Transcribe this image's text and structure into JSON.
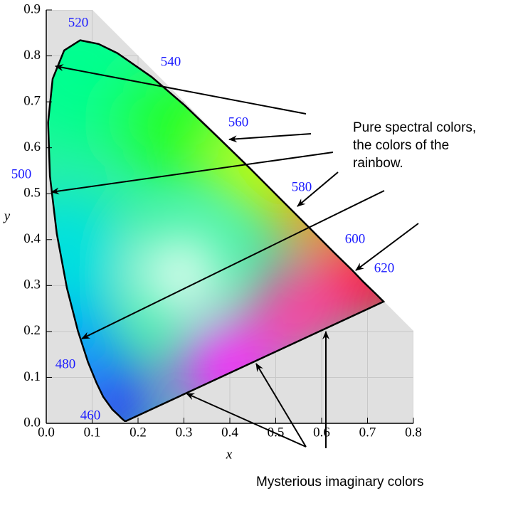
{
  "chart_data": {
    "type": "line",
    "x_label": "x",
    "y_label": "y",
    "xlim": [
      0,
      0.8
    ],
    "ylim": [
      0,
      0.9
    ],
    "xticks": [
      {
        "value": 0,
        "label": "0.0"
      },
      {
        "value": 0.1,
        "label": "0.1"
      },
      {
        "value": 0.2,
        "label": "0.2"
      },
      {
        "value": 0.3,
        "label": "0.3"
      },
      {
        "value": 0.4,
        "label": "0.4"
      },
      {
        "value": 0.5,
        "label": "0.5"
      },
      {
        "value": 0.6,
        "label": "0.6"
      },
      {
        "value": 0.7,
        "label": "0.7"
      },
      {
        "value": 0.8,
        "label": "0.8"
      }
    ],
    "yticks": [
      {
        "value": 0,
        "label": "0.0"
      },
      {
        "value": 0.1,
        "label": "0.1"
      },
      {
        "value": 0.2,
        "label": "0.2"
      },
      {
        "value": 0.3,
        "label": "0.3"
      },
      {
        "value": 0.4,
        "label": "0.4"
      },
      {
        "value": 0.5,
        "label": "0.5"
      },
      {
        "value": 0.6,
        "label": "0.6"
      },
      {
        "value": 0.7,
        "label": "0.7"
      },
      {
        "value": 0.8,
        "label": "0.8"
      },
      {
        "value": 0.9,
        "label": "0.9"
      }
    ],
    "grid": true,
    "series": [
      {
        "color": "#000000",
        "x": [
          0.174,
          0.171,
          0.164,
          0.157,
          0.144,
          0.124,
          0.11,
          0.091,
          0.069,
          0.045,
          0.023,
          0.008,
          0.004,
          0.014,
          0.039,
          0.074,
          0.114,
          0.155,
          0.23,
          0.302,
          0.373,
          0.444,
          0.512,
          0.575,
          0.627,
          0.666,
          0.691,
          0.719,
          0.735
        ],
        "values": [
          0.005,
          0.005,
          0.011,
          0.018,
          0.03,
          0.058,
          0.087,
          0.133,
          0.201,
          0.295,
          0.413,
          0.538,
          0.655,
          0.75,
          0.812,
          0.834,
          0.826,
          0.806,
          0.754,
          0.692,
          0.624,
          0.555,
          0.487,
          0.424,
          0.372,
          0.334,
          0.308,
          0.281,
          0.265
        ]
      }
    ],
    "wavelength_labels": [
      460,
      480,
      500,
      520,
      540,
      560,
      580,
      600,
      620
    ],
    "annotations": [
      "Pure spectral colors,",
      "the colors of the",
      "rainbow.",
      "Mysterious imaginary colors"
    ]
  }
}
